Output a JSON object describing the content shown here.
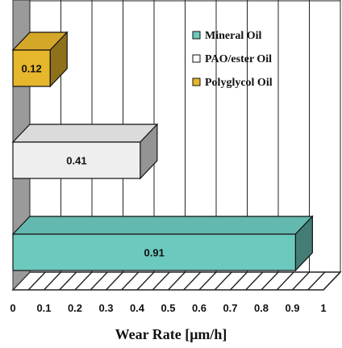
{
  "chart_data": {
    "type": "bar",
    "orientation": "horizontal",
    "three_d": true,
    "categories": [
      "Mineral Oil",
      "PAO/ester Oil",
      "Polyglycol Oil"
    ],
    "values": [
      0.91,
      0.41,
      0.12
    ],
    "data_labels": [
      "0.91",
      "0.41",
      "0.12"
    ],
    "colors": [
      "#6cc9be",
      "#eeeeee",
      "#e6b62c"
    ],
    "legend": [
      {
        "name": "Mineral Oil",
        "color": "#6cc9be"
      },
      {
        "name": "PAO/ester Oil",
        "color": "#ffffff"
      },
      {
        "name": "Polyglycol Oil",
        "color": "#e6b62c"
      }
    ],
    "legend_position": "top-right",
    "xlabel": "Wear Rate [μm/h]",
    "ylabel": "",
    "title": "",
    "xlim": [
      0,
      1
    ],
    "x_ticks": [
      "0",
      "0.1",
      "0.2",
      "0.3",
      "0.4",
      "0.5",
      "0.6",
      "0.7",
      "0.8",
      "0.9",
      "1"
    ],
    "grid": true
  }
}
